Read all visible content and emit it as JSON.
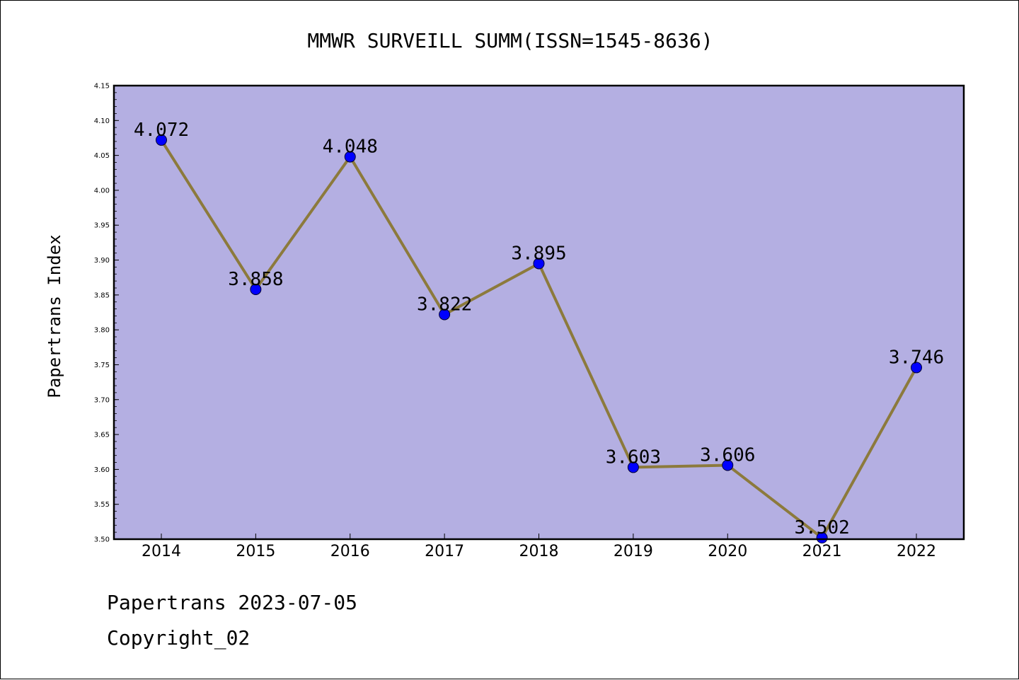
{
  "chart_data": {
    "type": "line",
    "title": "MMWR SURVEILL SUMM(ISSN=1545-8636)",
    "xlabel": "",
    "ylabel": "Papertrans Index",
    "categories": [
      "2014",
      "2015",
      "2016",
      "2017",
      "2018",
      "2019",
      "2020",
      "2021",
      "2022"
    ],
    "series": [
      {
        "values": [
          4.072,
          3.858,
          4.048,
          3.822,
          3.895,
          3.603,
          3.606,
          3.502,
          3.746
        ],
        "data_labels": [
          "4.072",
          "3.858",
          "4.048",
          "3.822",
          "3.895",
          "3.603",
          "3.606",
          "3.502",
          "3.746"
        ]
      }
    ],
    "ylim": [
      3.5,
      4.15
    ],
    "yticks": [
      "3.50",
      "3.55",
      "3.60",
      "3.65",
      "3.70",
      "3.75",
      "3.80",
      "3.85",
      "3.90",
      "3.95",
      "4.00",
      "4.05",
      "4.10",
      "4.15"
    ],
    "grid": false,
    "legend": "none",
    "colors": {
      "plot_background": "#b4afe2",
      "line": "#8c7a3c",
      "marker": "#0000ff"
    }
  },
  "footer": {
    "date_line": "Papertrans 2023-07-05",
    "copyright": "Copyright_02"
  }
}
